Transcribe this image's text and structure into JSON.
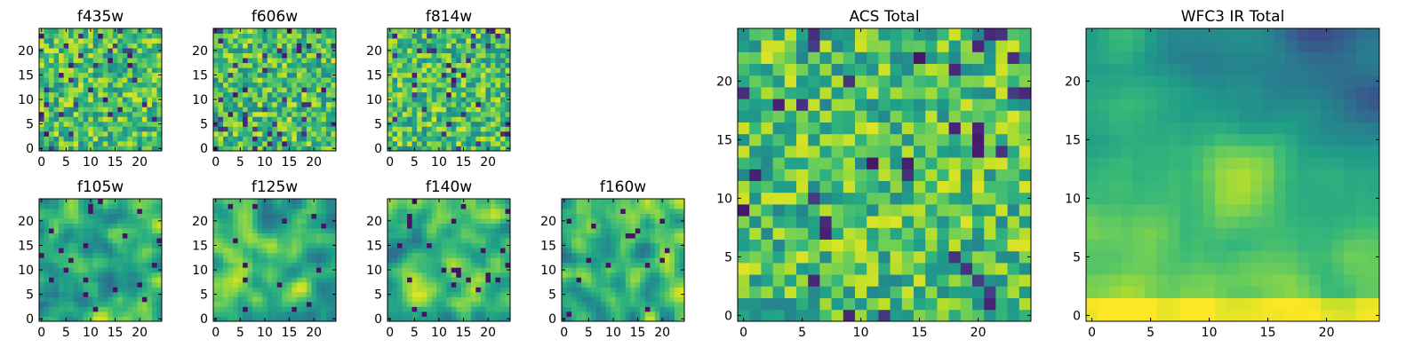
{
  "figure": {
    "background": "#ffffff"
  },
  "chart_data": [
    {
      "type": "heatmap",
      "title": "f435w",
      "grid_size": 25,
      "field": "noise",
      "seed": 11,
      "colormap": "viridis",
      "xlim": [
        0,
        24
      ],
      "ylim": [
        0,
        24
      ],
      "xticks": [
        "0",
        "5",
        "10",
        "15",
        "20"
      ],
      "yticks": [
        "0",
        "5",
        "10",
        "15",
        "20"
      ]
    },
    {
      "type": "heatmap",
      "title": "f606w",
      "grid_size": 25,
      "field": "noise",
      "seed": 23,
      "colormap": "viridis",
      "xlim": [
        0,
        24
      ],
      "ylim": [
        0,
        24
      ],
      "xticks": [
        "0",
        "5",
        "10",
        "15",
        "20"
      ],
      "yticks": [
        "0",
        "5",
        "10",
        "15",
        "20"
      ]
    },
    {
      "type": "heatmap",
      "title": "f814w",
      "grid_size": 25,
      "field": "noise",
      "seed": 37,
      "colormap": "viridis",
      "xlim": [
        0,
        24
      ],
      "ylim": [
        0,
        24
      ],
      "xticks": [
        "0",
        "5",
        "10",
        "15",
        "20"
      ],
      "yticks": [
        "0",
        "5",
        "10",
        "15",
        "20"
      ]
    },
    {
      "type": "heatmap",
      "title": "f105w",
      "grid_size": 25,
      "field": "smooth",
      "seed": 41,
      "colormap": "viridis",
      "xlim": [
        0,
        24
      ],
      "ylim": [
        0,
        24
      ],
      "xticks": [
        "0",
        "5",
        "10",
        "15",
        "20"
      ],
      "yticks": [
        "0",
        "5",
        "10",
        "15",
        "20"
      ]
    },
    {
      "type": "heatmap",
      "title": "f125w",
      "grid_size": 25,
      "field": "smooth",
      "seed": 53,
      "colormap": "viridis",
      "xlim": [
        0,
        24
      ],
      "ylim": [
        0,
        24
      ],
      "xticks": [
        "0",
        "5",
        "10",
        "15",
        "20"
      ],
      "yticks": [
        "0",
        "5",
        "10",
        "15",
        "20"
      ]
    },
    {
      "type": "heatmap",
      "title": "f140w",
      "grid_size": 25,
      "field": "smooth",
      "seed": 67,
      "colormap": "viridis",
      "xlim": [
        0,
        24
      ],
      "ylim": [
        0,
        24
      ],
      "xticks": [
        "0",
        "5",
        "10",
        "15",
        "20"
      ],
      "yticks": [
        "0",
        "5",
        "10",
        "15",
        "20"
      ]
    },
    {
      "type": "heatmap",
      "title": "f160w",
      "grid_size": 25,
      "field": "smooth",
      "seed": 79,
      "colormap": "viridis",
      "xlim": [
        0,
        24
      ],
      "ylim": [
        0,
        24
      ],
      "xticks": [
        "0",
        "5",
        "10",
        "15",
        "20"
      ],
      "yticks": [
        "0",
        "5",
        "10",
        "15",
        "20"
      ]
    },
    {
      "type": "heatmap",
      "title": "ACS Total",
      "grid_size": 25,
      "field": "noise",
      "seed": 97,
      "colormap": "viridis",
      "xlim": [
        0,
        24
      ],
      "ylim": [
        0,
        24
      ],
      "xticks": [
        "0",
        "5",
        "10",
        "15",
        "20"
      ],
      "yticks": [
        "0",
        "5",
        "10",
        "15",
        "20"
      ]
    },
    {
      "type": "heatmap",
      "title": "WFC3 IR Total",
      "grid_size": 25,
      "field": "gradient",
      "seed": 113,
      "colormap": "viridis",
      "xlim": [
        0,
        24
      ],
      "ylim": [
        0,
        24
      ],
      "xticks": [
        "0",
        "5",
        "10",
        "15",
        "20"
      ],
      "yticks": [
        "0",
        "5",
        "10",
        "15",
        "20"
      ]
    }
  ]
}
